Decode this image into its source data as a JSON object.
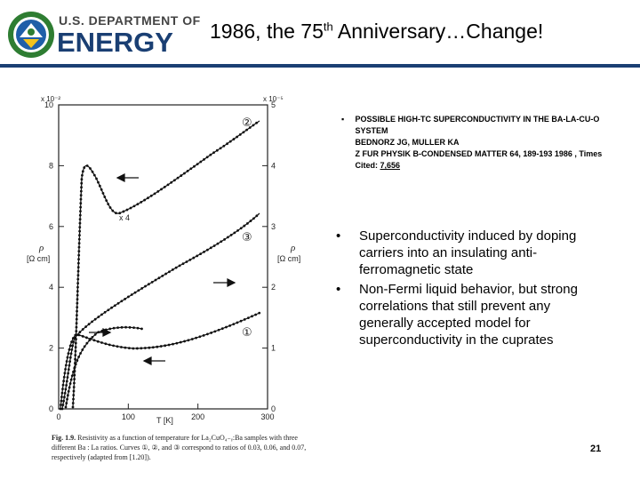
{
  "header": {
    "org_small": "U.S. DEPARTMENT OF",
    "org_big": "ENERGY",
    "title_pre": "1986, the 75",
    "title_sup": "th",
    "title_post": " Anniversary…Change!"
  },
  "figure": {
    "left_axis_multiplier": "x 10⁻²",
    "right_axis_multiplier": "x 10⁻⁵",
    "left_ticks": [
      "0",
      "2",
      "4",
      "6",
      "8",
      "10"
    ],
    "right_ticks": [
      "0",
      "1",
      "2",
      "3",
      "4",
      "5"
    ],
    "x_ticks": [
      "0",
      "100",
      "200",
      "300"
    ],
    "left_ylabel": "ρ",
    "left_yunit": "[Ω cm]",
    "right_ylabel": "ρ",
    "right_yunit": "[Ω cm]",
    "xlabel": "T [K]",
    "curve_labels": [
      "②",
      "③",
      "①"
    ],
    "scale_note": "x 4",
    "caption_number": "Fig. 1.9.",
    "caption_text": "Resistivity as a function of temperature for La₂CuO₄₋ᵧ:Ba samples with three different Ba : La ratios. Curves ①, ②, and ③ correspond to ratios of 0.03, 0.06, and 0.07, respectively (adapted from [1.20])."
  },
  "reference": {
    "bullet": "▪",
    "title": "POSSIBLE HIGH-TC SUPERCONDUCTIVITY IN THE BA-LA-CU-O SYSTEM",
    "authors": "BEDNORZ JG, MULLER KA",
    "journal": "Z FUR PHYSIK B-CONDENSED MATTER   64, 189-193   1986 , Times Cited: ",
    "times_cited": "7,656"
  },
  "bullets": [
    "Superconductivity induced by doping carriers into an insulating anti-ferromagnetic state",
    "Non-Fermi liquid behavior, but strong correlations that still prevent any generally accepted model for superconductivity in the cuprates"
  ],
  "bullet_marker": "•",
  "page_number": "21",
  "colors": {
    "doe_blue": "#1a3f73",
    "seal_green": "#2e7d32"
  }
}
